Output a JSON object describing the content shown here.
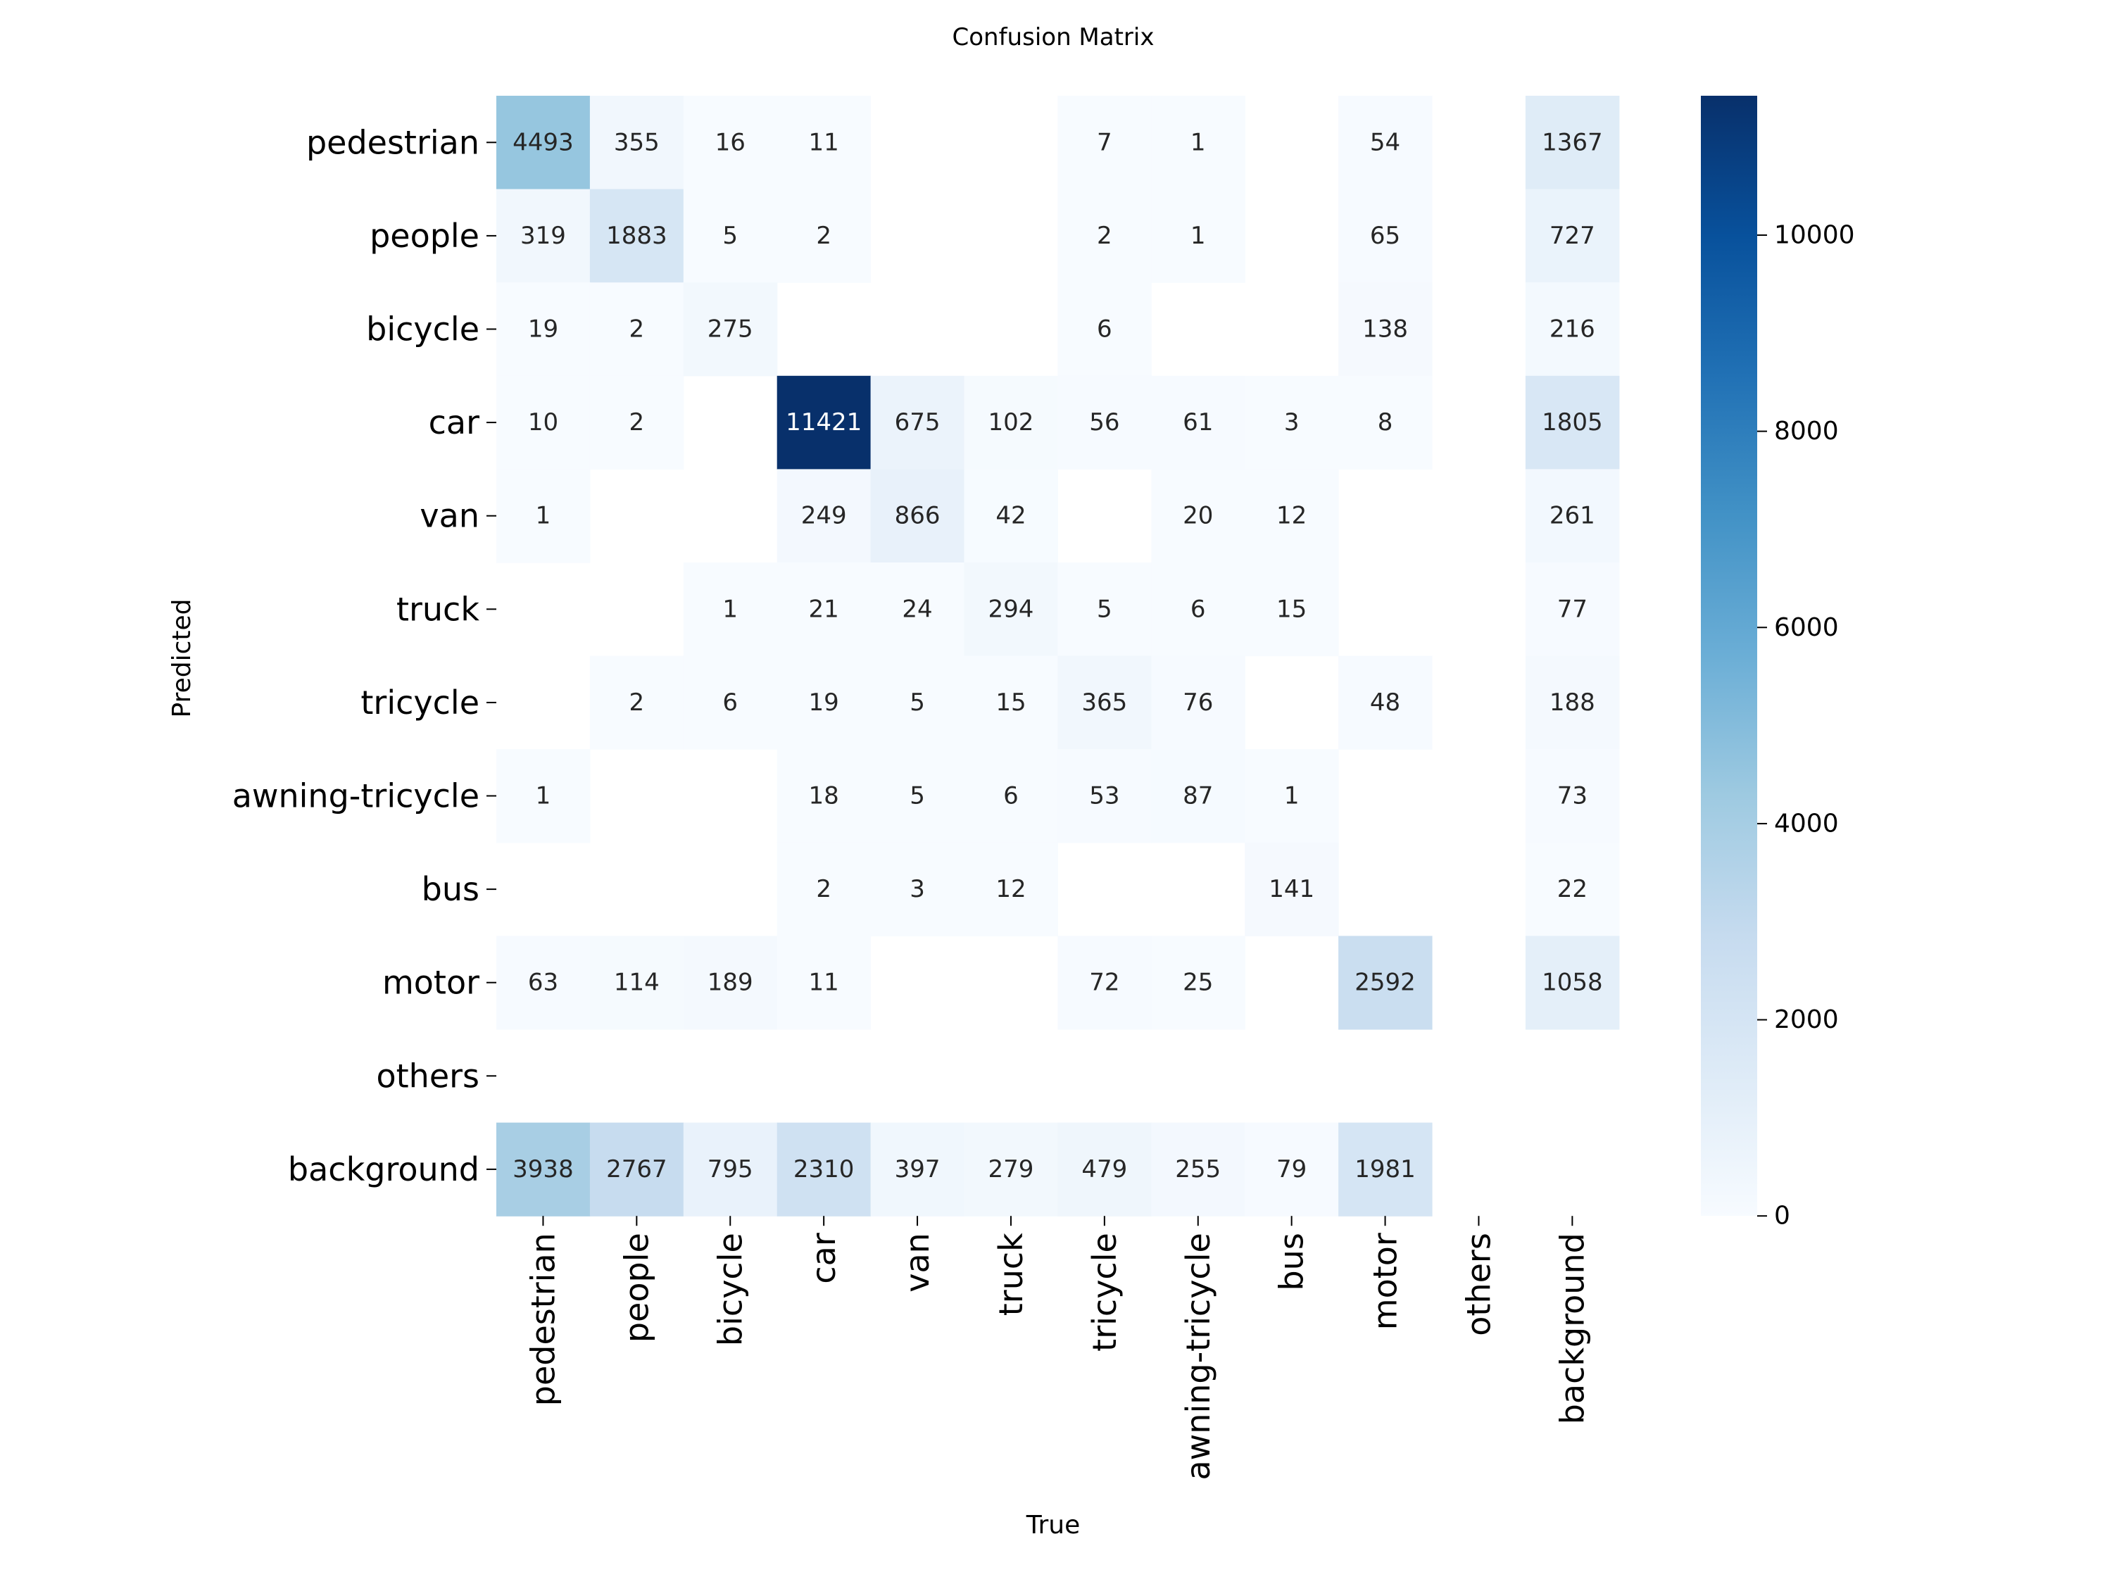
{
  "chart_data": {
    "type": "heatmap",
    "title": "Confusion Matrix",
    "xlabel": "True",
    "ylabel": "Predicted",
    "x_categories": [
      "pedestrian",
      "people",
      "bicycle",
      "car",
      "van",
      "truck",
      "tricycle",
      "awning-tricycle",
      "bus",
      "motor",
      "others",
      "background"
    ],
    "y_categories": [
      "pedestrian",
      "people",
      "bicycle",
      "car",
      "van",
      "truck",
      "tricycle",
      "awning-tricycle",
      "bus",
      "motor",
      "others",
      "background"
    ],
    "values": [
      [
        4493,
        355,
        16,
        11,
        null,
        null,
        7,
        1,
        null,
        54,
        null,
        1367
      ],
      [
        319,
        1883,
        5,
        2,
        null,
        null,
        2,
        1,
        null,
        65,
        null,
        727
      ],
      [
        19,
        2,
        275,
        null,
        null,
        null,
        6,
        null,
        null,
        138,
        null,
        216
      ],
      [
        10,
        2,
        null,
        11421,
        675,
        102,
        56,
        61,
        3,
        8,
        null,
        1805
      ],
      [
        1,
        null,
        null,
        249,
        866,
        42,
        null,
        20,
        12,
        null,
        null,
        261
      ],
      [
        null,
        null,
        1,
        21,
        24,
        294,
        5,
        6,
        15,
        null,
        null,
        77
      ],
      [
        null,
        2,
        6,
        19,
        5,
        15,
        365,
        76,
        null,
        48,
        null,
        188
      ],
      [
        1,
        null,
        null,
        18,
        5,
        6,
        53,
        87,
        1,
        null,
        null,
        73
      ],
      [
        null,
        null,
        null,
        2,
        3,
        12,
        null,
        null,
        141,
        null,
        null,
        22
      ],
      [
        63,
        114,
        189,
        11,
        null,
        null,
        72,
        25,
        null,
        2592,
        null,
        1058
      ],
      [
        null,
        null,
        null,
        null,
        null,
        null,
        null,
        null,
        null,
        null,
        null,
        null
      ],
      [
        3938,
        2767,
        795,
        2310,
        397,
        279,
        479,
        255,
        79,
        1981,
        null,
        null
      ]
    ],
    "colorbar": {
      "colormap": "Blues",
      "range": [
        0,
        11421
      ],
      "ticks": [
        0,
        2000,
        4000,
        6000,
        8000,
        10000
      ],
      "tick_labels": [
        "0",
        "2000",
        "4000",
        "6000",
        "8000",
        "10000"
      ]
    },
    "grid": false
  }
}
